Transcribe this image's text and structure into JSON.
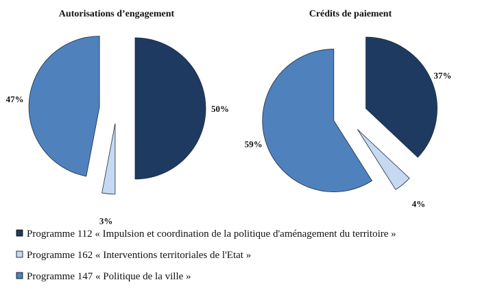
{
  "chart_data": [
    {
      "type": "pie",
      "title": "Autorisations d’engagement",
      "categories": [
        "Programme 112",
        "Programme 162",
        "Programme 147"
      ],
      "values": [
        50,
        3,
        47
      ],
      "labels": [
        "50%",
        "3%",
        "47%"
      ],
      "exploded": true
    },
    {
      "type": "pie",
      "title": "Crédits de paiement",
      "categories": [
        "Programme 112",
        "Programme 162",
        "Programme 147"
      ],
      "values": [
        37,
        4,
        59
      ],
      "labels": [
        "37%",
        "4%",
        "59%"
      ],
      "exploded": true
    }
  ],
  "legend": [
    {
      "label": "Programme 112 « Impulsion et coordination de la politique d'aménagement du territoire »",
      "color": "#1f3a60"
    },
    {
      "label": "Programme 162 « Interventions territoriales de l'Etat »",
      "color": "#c7d9f1"
    },
    {
      "label": "Programme 147 « Politique de la ville »",
      "color": "#4f81bd"
    }
  ],
  "colors": {
    "p112": "#1f3a60",
    "p162": "#c7d9f1",
    "p147": "#4f81bd",
    "stroke": "#1b2b40"
  }
}
